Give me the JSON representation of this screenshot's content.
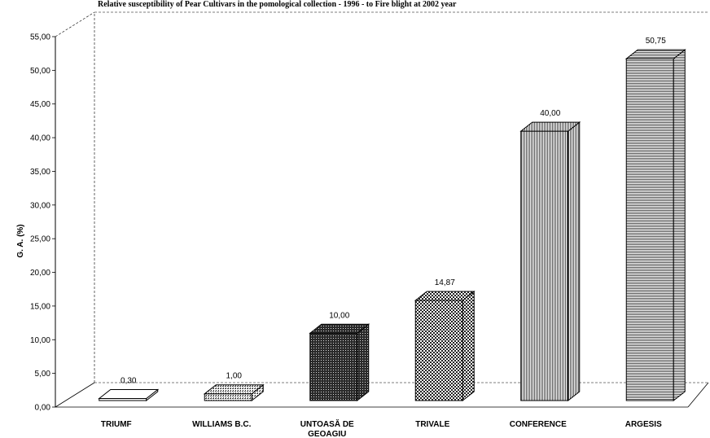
{
  "chart_data": {
    "type": "bar",
    "title": "Relative susceptibility of Pear Cultivars in the pomological collection - 1996 - to Fire blight at 2002 year",
    "ylabel": "G. A. (%)",
    "xlabel": "",
    "ylim": [
      0,
      55
    ],
    "yticks": [
      "0,00",
      "5,00",
      "10,00",
      "15,00",
      "20,00",
      "25,00",
      "30,00",
      "35,00",
      "40,00",
      "45,00",
      "50,00",
      "55,00"
    ],
    "categories": [
      "TRIUMF",
      "WILLIAMS B.C.",
      "UNTOASĂ DE GEOAGIU",
      "TRIVALE",
      "CONFERENCE",
      "ARGESIS"
    ],
    "values": [
      0.3,
      1.0,
      10.0,
      14.87,
      40.0,
      50.75
    ],
    "value_labels": [
      "0,30",
      "1,00",
      "10,00",
      "14,87",
      "40,00",
      "50,75"
    ],
    "grid": false,
    "three_d": true
  }
}
